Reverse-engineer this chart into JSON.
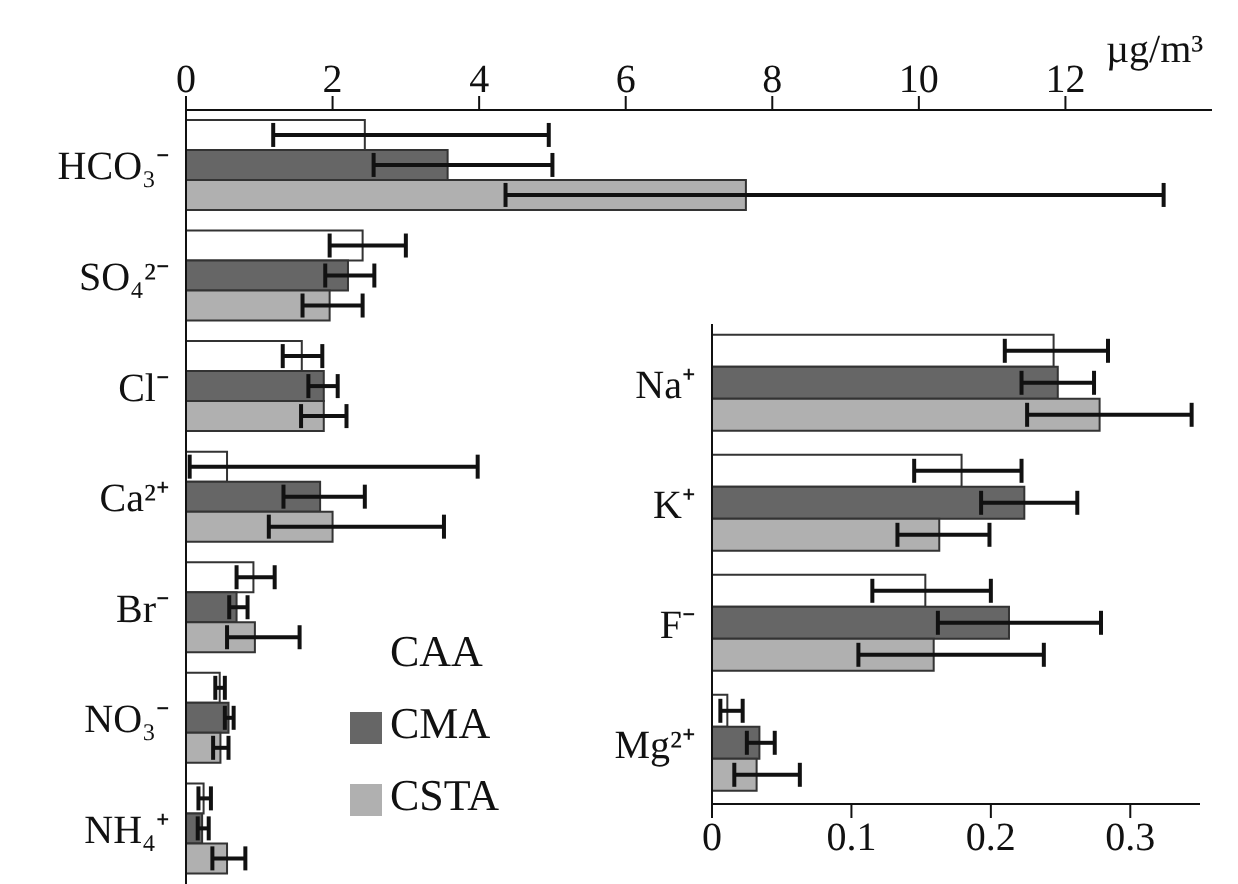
{
  "chart_data": [
    {
      "type": "bar",
      "orientation": "horizontal",
      "categories": [
        "HCO₃⁻",
        "SO₄²⁻",
        "Cl⁻",
        "Ca²⁺",
        "Br⁻",
        "NO₃⁻",
        "NH₄⁺"
      ],
      "series": [
        {
          "name": "CAA",
          "color": "#ffffff",
          "values": [
            2.44,
            2.41,
            1.58,
            0.56,
            0.92,
            0.46,
            0.24
          ],
          "errors": [
            [
              1.19,
              4.95
            ],
            [
              1.96,
              3.0
            ],
            [
              1.32,
              1.86
            ],
            [
              0.05,
              3.98
            ],
            [
              0.69,
              1.21
            ],
            [
              0.4,
              0.53
            ],
            [
              0.17,
              0.34
            ]
          ]
        },
        {
          "name": "CMA",
          "color": "#666666",
          "values": [
            3.57,
            2.21,
            1.88,
            1.83,
            0.69,
            0.58,
            0.22
          ],
          "errors": [
            [
              2.56,
              5.0
            ],
            [
              1.9,
              2.57
            ],
            [
              1.67,
              2.07
            ],
            [
              1.33,
              2.44
            ],
            [
              0.59,
              0.84
            ],
            [
              0.53,
              0.65
            ],
            [
              0.16,
              0.31
            ]
          ]
        },
        {
          "name": "CSTA",
          "color": "#b0b0b0",
          "values": [
            7.64,
            1.96,
            1.88,
            2.0,
            0.94,
            0.47,
            0.56
          ],
          "errors": [
            [
              4.36,
              13.34
            ],
            [
              1.59,
              2.41
            ],
            [
              1.57,
              2.19
            ],
            [
              1.13,
              3.52
            ],
            [
              0.56,
              1.55
            ],
            [
              0.37,
              0.58
            ],
            [
              0.36,
              0.81
            ]
          ]
        }
      ],
      "xlabel": "µg/m³",
      "xlim": [
        0,
        14
      ],
      "xticks": [
        0,
        2,
        4,
        6,
        8,
        10,
        12
      ],
      "legend": "bottom",
      "grid": false
    },
    {
      "type": "bar",
      "orientation": "horizontal",
      "categories": [
        "Na⁺",
        "K⁺",
        "F⁻",
        "Mg²⁺"
      ],
      "series": [
        {
          "color": "#ffffff",
          "values": [
            0.245,
            0.179,
            0.153,
            0.011
          ],
          "errors": [
            [
              0.21,
              0.284
            ],
            [
              0.145,
              0.222
            ],
            [
              0.115,
              0.2
            ],
            [
              0.006,
              0.022
            ]
          ]
        },
        {
          "color": "#666666",
          "values": [
            0.248,
            0.224,
            0.213,
            0.034
          ],
          "errors": [
            [
              0.222,
              0.274
            ],
            [
              0.193,
              0.262
            ],
            [
              0.162,
              0.279
            ],
            [
              0.025,
              0.045
            ]
          ]
        },
        {
          "color": "#b0b0b0",
          "values": [
            0.278,
            0.163,
            0.159,
            0.032
          ],
          "errors": [
            [
              0.226,
              0.344
            ],
            [
              0.133,
              0.199
            ],
            [
              0.105,
              0.238
            ],
            [
              0.016,
              0.063
            ]
          ]
        }
      ],
      "xlim": [
        0,
        0.35
      ],
      "xticks": [
        0,
        0.1,
        0.2,
        0.3
      ],
      "grid": false
    }
  ]
}
